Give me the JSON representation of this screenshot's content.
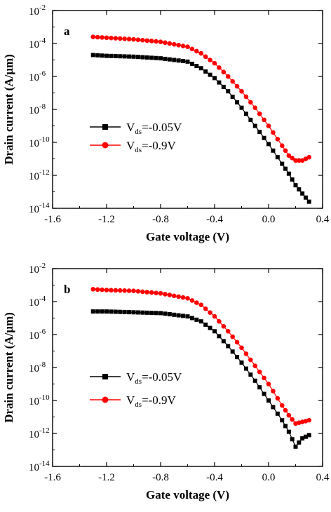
{
  "chart_data": [
    {
      "type": "scatter",
      "panel_label": "a",
      "xlabel": "Gate voltage (V)",
      "ylabel": "Drain current (A/μm)",
      "xlim": [
        -1.6,
        0.4
      ],
      "ylim": [
        1e-14,
        0.01
      ],
      "yscale": "log",
      "x_ticks": [
        -1.6,
        -1.2,
        -0.8,
        -0.4,
        0.0,
        0.4
      ],
      "x_tick_labels": [
        "-1.6",
        "-1.2",
        "-0.8",
        "-0.4",
        "0.0",
        "0.4"
      ],
      "y_tick_exponents": [
        -2,
        -4,
        -6,
        -8,
        -10,
        -12,
        -14
      ],
      "legend_position": "center-left",
      "series": [
        {
          "name": "V_ds=-0.05V",
          "legend_main": "V",
          "legend_sub": "ds",
          "legend_rest": "=-0.05V",
          "color": "#000000",
          "marker": "square",
          "x": [
            -1.3,
            -1.2,
            -1.0,
            -0.8,
            -0.6,
            -0.5,
            -0.4,
            -0.3,
            -0.2,
            -0.1,
            0.0,
            0.1,
            0.15,
            0.2,
            0.25,
            0.3
          ],
          "log10_y": [
            -4.7,
            -4.75,
            -4.8,
            -4.9,
            -5.1,
            -5.5,
            -6.1,
            -6.9,
            -7.9,
            -9.0,
            -10.1,
            -11.3,
            -11.9,
            -12.6,
            -13.1,
            -13.6
          ]
        },
        {
          "name": "V_ds=-0.9V",
          "legend_main": "V",
          "legend_sub": "ds",
          "legend_rest": "=-0.9V",
          "color": "#ff0000",
          "marker": "circle",
          "x": [
            -1.3,
            -1.2,
            -1.0,
            -0.8,
            -0.6,
            -0.5,
            -0.4,
            -0.3,
            -0.2,
            -0.1,
            0.0,
            0.1,
            0.15,
            0.2,
            0.25,
            0.3
          ],
          "log10_y": [
            -3.6,
            -3.65,
            -3.75,
            -3.9,
            -4.2,
            -4.6,
            -5.2,
            -6.0,
            -6.9,
            -7.9,
            -9.0,
            -10.2,
            -10.8,
            -11.1,
            -11.1,
            -10.9
          ]
        }
      ]
    },
    {
      "type": "scatter",
      "panel_label": "b",
      "xlabel": "Gate voltage (V)",
      "ylabel": "Drain current (A/μm)",
      "xlim": [
        -1.6,
        0.4
      ],
      "ylim": [
        1e-14,
        0.01
      ],
      "yscale": "log",
      "x_ticks": [
        -1.6,
        -1.2,
        -0.8,
        -0.4,
        0.0,
        0.4
      ],
      "x_tick_labels": [
        "-1.6",
        "-1.2",
        "-0.8",
        "-0.4",
        "0.0",
        "0.4"
      ],
      "y_tick_exponents": [
        -2,
        -4,
        -6,
        -8,
        -10,
        -12,
        -14
      ],
      "legend_position": "center-left",
      "series": [
        {
          "name": "V_ds=-0.05V",
          "legend_main": "V",
          "legend_sub": "ds",
          "legend_rest": "=-0.05V",
          "color": "#000000",
          "marker": "square",
          "x": [
            -1.3,
            -1.2,
            -1.0,
            -0.8,
            -0.6,
            -0.5,
            -0.4,
            -0.3,
            -0.2,
            -0.1,
            0.0,
            0.1,
            0.15,
            0.2,
            0.25,
            0.3
          ],
          "log10_y": [
            -4.6,
            -4.6,
            -4.65,
            -4.7,
            -4.9,
            -5.2,
            -5.8,
            -6.7,
            -7.7,
            -8.8,
            -10.0,
            -11.2,
            -11.9,
            -12.8,
            -12.3,
            -12.1
          ]
        },
        {
          "name": "V_ds=-0.9V",
          "legend_main": "V",
          "legend_sub": "ds",
          "legend_rest": "=-0.9V",
          "color": "#ff0000",
          "marker": "circle",
          "x": [
            -1.3,
            -1.2,
            -1.0,
            -0.8,
            -0.6,
            -0.5,
            -0.4,
            -0.3,
            -0.2,
            -0.1,
            0.0,
            0.1,
            0.15,
            0.2,
            0.25,
            0.3
          ],
          "log10_y": [
            -3.25,
            -3.3,
            -3.35,
            -3.5,
            -3.8,
            -4.2,
            -4.9,
            -5.8,
            -6.8,
            -7.9,
            -9.0,
            -10.3,
            -10.9,
            -11.4,
            -11.3,
            -11.2
          ]
        }
      ]
    }
  ]
}
